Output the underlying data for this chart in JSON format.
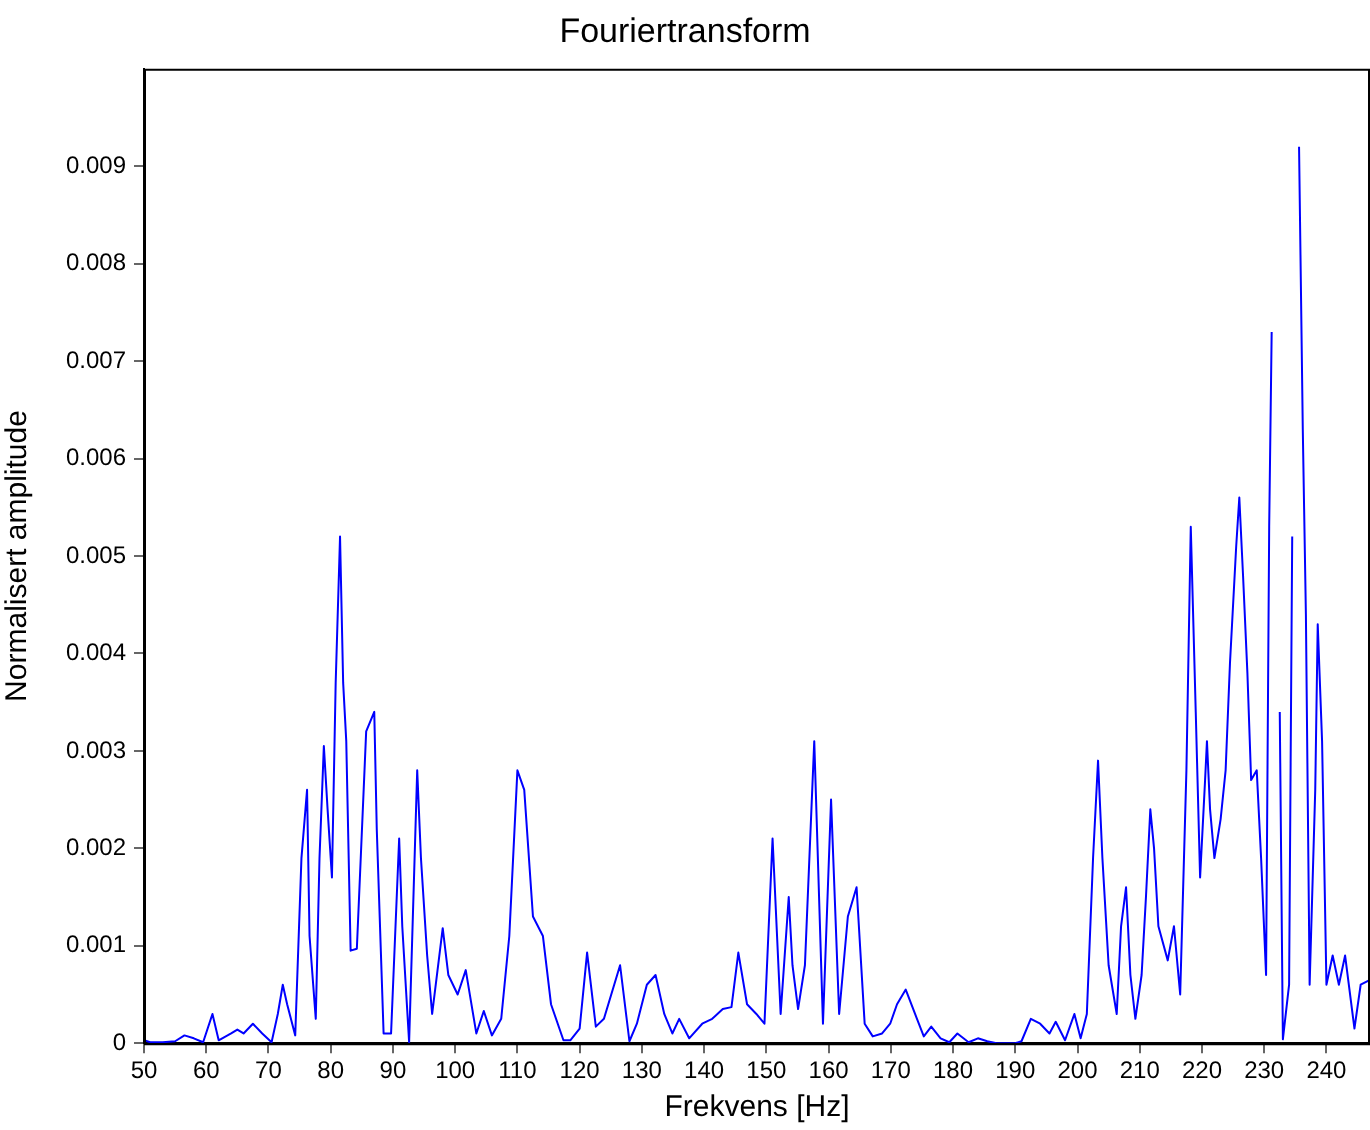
{
  "chart_data": {
    "type": "line",
    "title": "Fouriertransform",
    "xlabel": "Frekvens [Hz]",
    "ylabel": "Normalisert amplitude",
    "xlim": [
      50,
      247
    ],
    "ylim": [
      0,
      0.01
    ],
    "xticks": [
      50,
      60,
      70,
      80,
      90,
      100,
      110,
      120,
      130,
      140,
      150,
      160,
      170,
      180,
      190,
      200,
      210,
      220,
      230,
      240
    ],
    "yticks": [
      0,
      0.001,
      0.002,
      0.003,
      0.004,
      0.005,
      0.006,
      0.007,
      0.008,
      0.009
    ],
    "grid": false,
    "legend": false,
    "marker": "none",
    "line_style": "solid",
    "series": [
      {
        "color": "#0000ff",
        "x": [
          50,
          51,
          53,
          55,
          56.5,
          58,
          59.5,
          61,
          62,
          64,
          65,
          66,
          67.5,
          69,
          70.5,
          71.5,
          72.3,
          73,
          74.3,
          75.3,
          76.2,
          76.6,
          77.6,
          78.2,
          78.9,
          79.5,
          80.2,
          80.8,
          81.5,
          82,
          82.5,
          83.2,
          84.2,
          85.7,
          87,
          87.4,
          88.5,
          89.7,
          91,
          91.5,
          92.6,
          93.9,
          94.5,
          95.5,
          96.3,
          98,
          98.9,
          100.4,
          101.7,
          103.4,
          104.6,
          105.9,
          107.4,
          108.7,
          110,
          111.1,
          112.5,
          114.1,
          115.4,
          117.4,
          118.5,
          120,
          121.2,
          122.6,
          123.9,
          126.5,
          128,
          129.2,
          130.8,
          132.2,
          133.6,
          134.9,
          136,
          137.6,
          139.7,
          141.3,
          143,
          144.4,
          145.5,
          146.9,
          148.4,
          149.7,
          151,
          152.3,
          153.6,
          154.2,
          155.1,
          156.2,
          157.7,
          159.1,
          160.4,
          161.7,
          163.1,
          164.5,
          165.8,
          167.1,
          168.6,
          169.9,
          171,
          172.4,
          173.9,
          175.3,
          176.5,
          178,
          179.4,
          180.7,
          182.5,
          184,
          185.5,
          187,
          190,
          191,
          192.5,
          194,
          195.5,
          196.5,
          198,
          199.5,
          200.5,
          201.5,
          202.5,
          203.3,
          204,
          205,
          206.3,
          207,
          207.8,
          208.5,
          209.3,
          210.3,
          211,
          211.7,
          212.3,
          213,
          214.5,
          215.5,
          216.5,
          217.5,
          218.2,
          219,
          219.7,
          220.5,
          220.8,
          221.3,
          222,
          223,
          223.8,
          224.5,
          225.5,
          226,
          226.6,
          227.3,
          227.9,
          228.8,
          229.5,
          230.3,
          230.8,
          231.2,
          231.5,
          232,
          232.5,
          233,
          234,
          234.5,
          235.2,
          235.6,
          236.2,
          236.7,
          237.3,
          238.2,
          238.6,
          239.3,
          240,
          241,
          242,
          243,
          244.5,
          245.5,
          247
        ],
        "values": [
          3e-05,
          1e-05,
          1e-05,
          2e-05,
          8e-05,
          5e-05,
          1e-05,
          0.0003,
          3e-05,
          0.0001,
          0.00014,
          0.0001,
          0.0002,
          0.0001,
          1e-05,
          0.0003,
          0.0006,
          0.0004,
          8e-05,
          0.0019,
          0.0026,
          0.0011,
          0.00025,
          0.0019,
          0.00305,
          0.0024,
          0.0017,
          0.0037,
          0.0052,
          0.0037,
          0.0031,
          0.00095,
          0.00097,
          0.0032,
          0.0034,
          0.0022,
          0.0001,
          0.0001,
          0.0021,
          0.0012,
          1e-05,
          0.0028,
          0.0019,
          0.0009,
          0.0003,
          0.00118,
          0.0007,
          0.0005,
          0.00075,
          0.0001,
          0.00033,
          8e-05,
          0.00025,
          0.0011,
          0.0028,
          0.0026,
          0.0013,
          0.0011,
          0.0004,
          3e-05,
          3e-05,
          0.00015,
          0.00093,
          0.00017,
          0.00025,
          0.0008,
          2e-05,
          0.0002,
          0.0006,
          0.0007,
          0.0003,
          0.0001,
          0.00025,
          5e-05,
          0.0002,
          0.00025,
          0.00035,
          0.00037,
          0.00093,
          0.0004,
          0.0003,
          0.0002,
          0.0021,
          0.0003,
          0.0015,
          0.0008,
          0.00035,
          0.0008,
          0.0031,
          0.0002,
          0.0025,
          0.0003,
          0.0013,
          0.0016,
          0.0002,
          7e-05,
          0.0001,
          0.0002,
          0.0004,
          0.00055,
          0.0003,
          7e-05,
          0.00017,
          5e-05,
          1e-05,
          0.0001,
          1e-05,
          5e-05,
          2e-05,
          0,
          0,
          2e-05,
          0.00025,
          0.0002,
          0.0001,
          0.00022,
          3e-05,
          0.0003,
          5e-05,
          0.0003,
          0.0019,
          0.0029,
          0.0019,
          0.0008,
          0.0003,
          0.0012,
          0.0016,
          0.0007,
          0.00025,
          0.0007,
          0.0015,
          0.0024,
          0.002,
          0.0012,
          0.00085,
          0.0012,
          0.0005,
          0.0028,
          0.0053,
          0.0034,
          0.0017,
          0.0027,
          0.0031,
          0.0024,
          0.0019,
          0.0023,
          0.0028,
          0.0039,
          0.0051,
          0.0056,
          0.0048,
          0.0038,
          0.0027,
          0.0028,
          0.0019,
          0.0007,
          0.0053,
          0.0073,
          null,
          null,
          0.0034,
          4e-05,
          0.0006,
          0.0052,
          null,
          0.0092,
          0.0063,
          0.0044,
          0.0006,
          0.0026,
          0.0043,
          0.0031,
          0.0006,
          0.0009,
          0.0006,
          0.0009,
          0.00015,
          0.0006,
          0.00065
        ]
      }
    ]
  }
}
